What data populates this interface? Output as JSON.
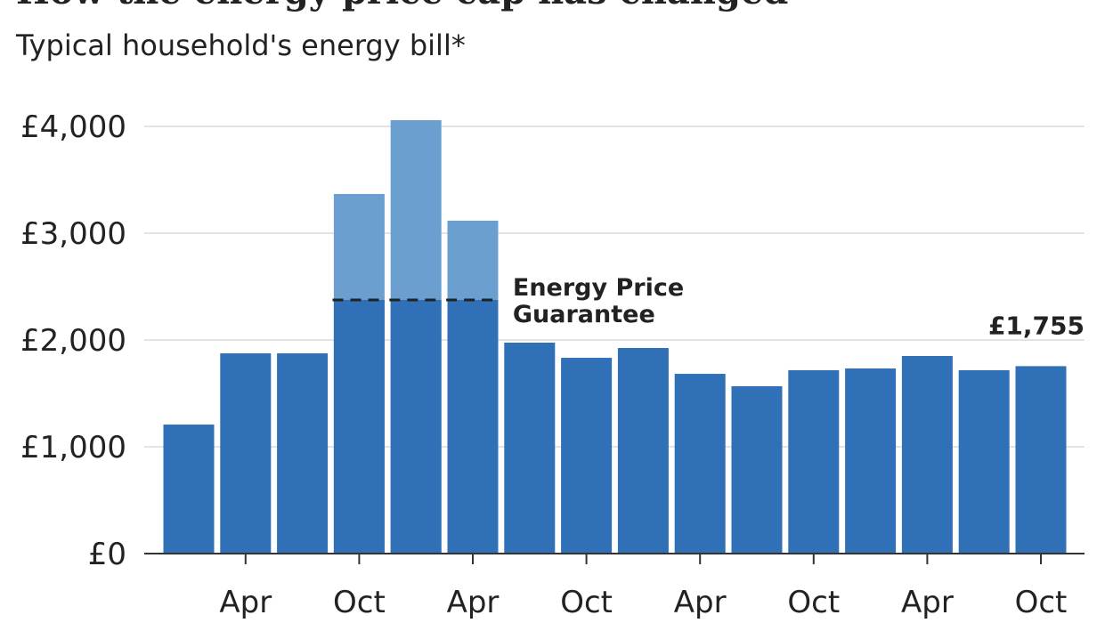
{
  "chart_data": {
    "type": "bar",
    "title": "How the energy price cap has changed",
    "subtitle": "Typical household's energy bill*",
    "categories": [
      null,
      "Apr",
      null,
      "Oct",
      null,
      "Apr",
      null,
      "Oct",
      null,
      "Apr",
      null,
      "Oct",
      null,
      "Apr",
      null,
      "Oct"
    ],
    "values": [
      1208,
      1875,
      1875,
      3367,
      4058,
      3117,
      1975,
      1833,
      1925,
      1683,
      1567,
      1717,
      1733,
      1850,
      1717,
      1755
    ],
    "value_labels": [
      null,
      null,
      null,
      null,
      null,
      null,
      null,
      null,
      null,
      null,
      null,
      null,
      null,
      null,
      null,
      "£1,755"
    ],
    "color": "#3070b6",
    "excess_color": "#6a9fd0",
    "guarantee_values": [
      null,
      null,
      null,
      2375,
      2375,
      2375,
      null,
      null,
      null,
      null,
      null,
      null,
      null,
      null,
      null,
      null
    ],
    "guarantee_label": [
      "Energy Price",
      "Guarantee"
    ],
    "label_color": "#3a78b8",
    "ylim": [
      0,
      4000
    ],
    "yticks": [
      {
        "value": 0,
        "label": "£0"
      },
      {
        "value": 1000,
        "label": "£1,000"
      },
      {
        "value": 2000,
        "label": "£2,000"
      },
      {
        "value": 3000,
        "label": "£3,000"
      },
      {
        "value": 4000,
        "label": "£4,000"
      }
    ],
    "grid": true
  }
}
